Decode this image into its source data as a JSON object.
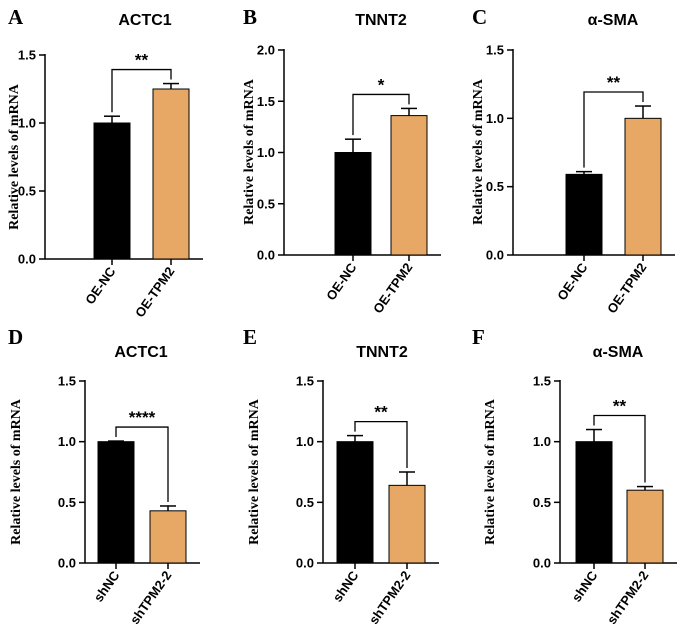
{
  "colors": {
    "control": "#000000",
    "treatment": "#E8A865"
  },
  "chart_data": [
    {
      "panel": "A",
      "type": "bar",
      "title": "ACTC1",
      "ylabel": "Relative levels of mRNA",
      "ylim": [
        0,
        1.5
      ],
      "yticks": [
        "0.0",
        "0.5",
        "1.0",
        "1.5"
      ],
      "categories": [
        "OE-NC",
        "OE-TPM2"
      ],
      "values": [
        1.0,
        1.25
      ],
      "errors": [
        0.05,
        0.04
      ],
      "significance": "**"
    },
    {
      "panel": "B",
      "type": "bar",
      "title": "TNNT2",
      "ylabel": "Relative levels of mRNA",
      "ylim": [
        0,
        2.0
      ],
      "yticks": [
        "0.0",
        "0.5",
        "1.0",
        "1.5",
        "2.0"
      ],
      "categories": [
        "OE-NC",
        "OE-TPM2"
      ],
      "values": [
        1.0,
        1.36
      ],
      "errors": [
        0.13,
        0.07
      ],
      "significance": "*"
    },
    {
      "panel": "C",
      "type": "bar",
      "title": "α-SMA",
      "ylabel": "Relative levels of mRNA",
      "ylim": [
        0,
        1.5
      ],
      "yticks": [
        "0.0",
        "0.5",
        "1.0",
        "1.5"
      ],
      "categories": [
        "OE-NC",
        "OE-TPM2"
      ],
      "values": [
        0.59,
        1.0
      ],
      "errors": [
        0.02,
        0.09
      ],
      "significance": "**"
    },
    {
      "panel": "D",
      "type": "bar",
      "title": "ACTC1",
      "ylabel": "Relative levels of mRNA",
      "ylim": [
        0,
        1.5
      ],
      "yticks": [
        "0.0",
        "0.5",
        "1.0",
        "1.5"
      ],
      "categories": [
        "shNC",
        "shTPM2-2"
      ],
      "values": [
        1.0,
        0.43
      ],
      "errors": [
        0.005,
        0.04
      ],
      "significance": "****"
    },
    {
      "panel": "E",
      "type": "bar",
      "title": "TNNT2",
      "ylabel": "Relative levels of mRNA",
      "ylim": [
        0,
        1.5
      ],
      "yticks": [
        "0.0",
        "0.5",
        "1.0",
        "1.5"
      ],
      "categories": [
        "shNC",
        "shTPM2-2"
      ],
      "values": [
        1.0,
        0.64
      ],
      "errors": [
        0.05,
        0.11
      ],
      "significance": "**"
    },
    {
      "panel": "F",
      "type": "bar",
      "title": "α-SMA",
      "ylabel": "Relative levels of mRNA",
      "ylim": [
        0,
        1.5
      ],
      "yticks": [
        "0.0",
        "0.5",
        "1.0",
        "1.5"
      ],
      "categories": [
        "shNC",
        "shTPM2-2"
      ],
      "values": [
        1.0,
        0.6
      ],
      "errors": [
        0.1,
        0.03
      ],
      "significance": "**"
    }
  ]
}
